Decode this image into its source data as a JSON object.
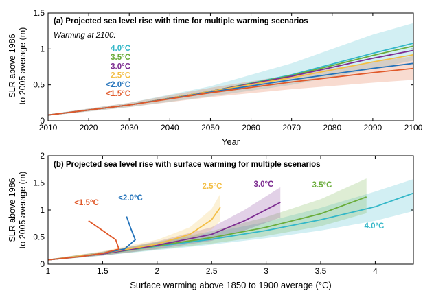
{
  "chart_data": [
    {
      "type": "line",
      "title": "(a) Projected sea level rise with time for multiple warming scenarios",
      "xlabel": "Year",
      "ylabel_line1": "SLR above 1986",
      "ylabel_line2": "to 2005 average (m)",
      "xlim": [
        2010,
        2100
      ],
      "ylim": [
        0,
        1.5
      ],
      "xticks": [
        2010,
        2020,
        2030,
        2040,
        2050,
        2060,
        2070,
        2080,
        2090,
        2100
      ],
      "yticks": [
        0,
        0.5,
        1,
        1.5
      ],
      "xtick_labels": [
        "2010",
        "2020",
        "2030",
        "2040",
        "2050",
        "2060",
        "2070",
        "2080",
        "2090",
        "2100"
      ],
      "ytick_labels": [
        "0",
        "0.5",
        "1",
        "1.5"
      ],
      "grid": false,
      "legend_title": "Warming at 2100:",
      "legend_position": "top-left",
      "series": [
        {
          "name": "4.0°C",
          "color": "#33B7C8",
          "x": [
            2010,
            2030,
            2050,
            2070,
            2090,
            2100
          ],
          "values": [
            0.08,
            0.22,
            0.41,
            0.64,
            0.94,
            1.08
          ],
          "band_low": [
            0.07,
            0.19,
            0.34,
            0.5,
            0.72,
            0.84
          ],
          "band_high": [
            0.09,
            0.25,
            0.48,
            0.8,
            1.2,
            1.36
          ]
        },
        {
          "name": "3.5°C",
          "color": "#6AAC3A",
          "x": [
            2010,
            2030,
            2050,
            2070,
            2090,
            2100
          ],
          "values": [
            0.08,
            0.22,
            0.41,
            0.63,
            0.91,
            1.04
          ],
          "band_low": [],
          "band_high": []
        },
        {
          "name": "3.0°C",
          "color": "#7D2D91",
          "x": [
            2010,
            2030,
            2050,
            2070,
            2090,
            2100
          ],
          "values": [
            0.08,
            0.22,
            0.41,
            0.62,
            0.87,
            0.98
          ],
          "band_low": [],
          "band_high": []
        },
        {
          "name": "2.5°C",
          "color": "#F3BE44",
          "x": [
            2010,
            2030,
            2050,
            2070,
            2090,
            2100
          ],
          "values": [
            0.08,
            0.22,
            0.41,
            0.6,
            0.82,
            0.92
          ],
          "band_low": [],
          "band_high": []
        },
        {
          "name": "<2.0°C",
          "color": "#2272BA",
          "x": [
            2010,
            2030,
            2050,
            2070,
            2090,
            2100
          ],
          "values": [
            0.08,
            0.22,
            0.4,
            0.57,
            0.73,
            0.8
          ],
          "band_low": [],
          "band_high": []
        },
        {
          "name": "<1.5°C",
          "color": "#E0592A",
          "x": [
            2010,
            2030,
            2050,
            2070,
            2090,
            2100
          ],
          "values": [
            0.08,
            0.22,
            0.39,
            0.54,
            0.67,
            0.73
          ],
          "band_low": [
            0.07,
            0.19,
            0.33,
            0.44,
            0.53,
            0.57
          ],
          "band_high": [
            0.09,
            0.25,
            0.46,
            0.64,
            0.82,
            0.9
          ]
        }
      ]
    },
    {
      "type": "line",
      "title": "(b) Projected sea level rise with surface warming for multiple scenarios",
      "xlabel": "Surface warming above 1850 to 1900 average (°C)",
      "ylabel_line1": "SLR above 1986",
      "ylabel_line2": "to 2005 average (m)",
      "xlim": [
        1,
        4.35
      ],
      "ylim": [
        0,
        2
      ],
      "xticks": [
        1,
        1.5,
        2,
        2.5,
        3,
        3.5,
        4
      ],
      "yticks": [
        0,
        0.5,
        1,
        1.5,
        2
      ],
      "xtick_labels": [
        "1",
        "1.5",
        "2",
        "2.5",
        "3",
        "3.5",
        "4"
      ],
      "ytick_labels": [
        "0",
        "0.5",
        "1",
        "1.5",
        "2"
      ],
      "grid": false,
      "series": [
        {
          "name": "4.0°C",
          "color": "#33B7C8",
          "x": [
            1.0,
            1.5,
            2.0,
            2.5,
            3.0,
            3.5,
            4.0,
            4.35
          ],
          "values": [
            0.08,
            0.19,
            0.33,
            0.46,
            0.62,
            0.82,
            1.06,
            1.31
          ],
          "band_low": [
            0.07,
            0.16,
            0.26,
            0.36,
            0.48,
            0.62,
            0.8,
            0.98
          ],
          "band_high": [
            0.09,
            0.23,
            0.4,
            0.58,
            0.78,
            1.04,
            1.34,
            1.57
          ]
        },
        {
          "name": "3.5°C",
          "color": "#6AAC3A",
          "x": [
            1.0,
            1.5,
            2.0,
            2.5,
            3.0,
            3.5,
            3.92
          ],
          "values": [
            0.08,
            0.19,
            0.34,
            0.49,
            0.68,
            0.93,
            1.24
          ],
          "band_low": [
            0.07,
            0.16,
            0.27,
            0.38,
            0.52,
            0.7,
            0.94
          ],
          "band_high": [
            0.09,
            0.23,
            0.41,
            0.61,
            0.87,
            1.2,
            1.58
          ]
        },
        {
          "name": "3.0°C",
          "color": "#7D2D91",
          "x": [
            1.0,
            1.5,
            2.0,
            2.5,
            2.8,
            3.13
          ],
          "values": [
            0.08,
            0.19,
            0.35,
            0.55,
            0.8,
            1.14
          ],
          "band_low": [
            0.07,
            0.16,
            0.28,
            0.43,
            0.62,
            0.86
          ],
          "band_high": [
            0.09,
            0.23,
            0.42,
            0.68,
            1.0,
            1.42
          ]
        },
        {
          "name": "2.5°C",
          "color": "#F3BE44",
          "x": [
            1.0,
            1.5,
            2.0,
            2.3,
            2.5,
            2.58
          ],
          "values": [
            0.08,
            0.2,
            0.37,
            0.55,
            0.82,
            1.05
          ],
          "band_low": [
            0.07,
            0.17,
            0.3,
            0.44,
            0.64,
            0.8
          ],
          "band_high": [
            0.09,
            0.24,
            0.45,
            0.68,
            1.02,
            1.3
          ]
        },
        {
          "name": "<2.0°C",
          "color": "#2272BA",
          "x": [
            1.0,
            1.3,
            1.5,
            1.7,
            1.8,
            1.76,
            1.72
          ],
          "values": [
            0.08,
            0.14,
            0.2,
            0.28,
            0.45,
            0.65,
            0.88
          ],
          "band_low": [],
          "band_high": []
        },
        {
          "name": "<1.5°C",
          "color": "#E0592A",
          "x": [
            1.0,
            1.3,
            1.5,
            1.65,
            1.62,
            1.5,
            1.37
          ],
          "values": [
            0.08,
            0.14,
            0.2,
            0.28,
            0.45,
            0.62,
            0.8
          ],
          "band_low": [],
          "band_high": []
        }
      ],
      "annotations": [
        {
          "text": "<1.5°C",
          "color": "#E0592A"
        },
        {
          "text": "<2.0°C",
          "color": "#2272BA"
        },
        {
          "text": "2.5°C",
          "color": "#F3BE44"
        },
        {
          "text": "3.0°C",
          "color": "#7D2D91"
        },
        {
          "text": "3.5°C",
          "color": "#6AAC3A"
        },
        {
          "text": "4.0°C",
          "color": "#33B7C8"
        }
      ]
    }
  ]
}
